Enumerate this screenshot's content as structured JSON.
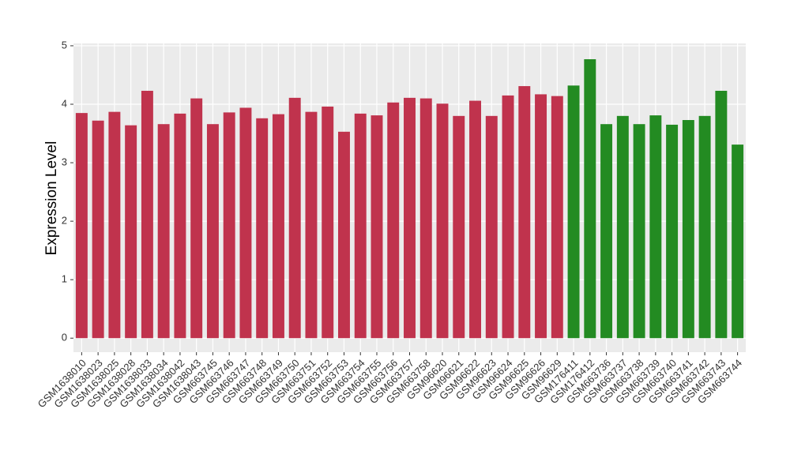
{
  "chart_data": {
    "type": "bar",
    "y_label": "Expression Level",
    "categories": [
      "GSM1638010",
      "GSM1638023",
      "GSM1638025",
      "GSM1638028",
      "GSM1638033",
      "GSM1638034",
      "GSM1638042",
      "GSM1638043",
      "GSM663745",
      "GSM663746",
      "GSM663747",
      "GSM663748",
      "GSM663749",
      "GSM663750",
      "GSM663751",
      "GSM663752",
      "GSM663753",
      "GSM663754",
      "GSM663755",
      "GSM663756",
      "GSM663757",
      "GSM663758",
      "GSM96620",
      "GSM96621",
      "GSM96622",
      "GSM96623",
      "GSM96624",
      "GSM96625",
      "GSM96626",
      "GSM96629",
      "GSM176411",
      "GSM176412",
      "GSM663736",
      "GSM663737",
      "GSM663738",
      "GSM663739",
      "GSM663740",
      "GSM663741",
      "GSM663742",
      "GSM663743",
      "GSM663744"
    ],
    "values": [
      3.85,
      3.72,
      3.87,
      3.64,
      4.23,
      3.66,
      3.84,
      4.1,
      3.66,
      3.86,
      3.94,
      3.76,
      3.83,
      4.11,
      3.87,
      3.96,
      3.53,
      3.84,
      3.81,
      4.03,
      4.11,
      4.1,
      4.01,
      3.8,
      4.06,
      3.8,
      4.15,
      4.31,
      4.17,
      4.14,
      4.32,
      4.77,
      3.66,
      3.8,
      3.66,
      3.81,
      3.65,
      3.73,
      3.8,
      4.23,
      3.31
    ],
    "colors": [
      "#c0334d",
      "#c0334d",
      "#c0334d",
      "#c0334d",
      "#c0334d",
      "#c0334d",
      "#c0334d",
      "#c0334d",
      "#c0334d",
      "#c0334d",
      "#c0334d",
      "#c0334d",
      "#c0334d",
      "#c0334d",
      "#c0334d",
      "#c0334d",
      "#c0334d",
      "#c0334d",
      "#c0334d",
      "#c0334d",
      "#c0334d",
      "#c0334d",
      "#c0334d",
      "#c0334d",
      "#c0334d",
      "#c0334d",
      "#c0334d",
      "#c0334d",
      "#c0334d",
      "#c0334d",
      "#238b22",
      "#238b22",
      "#238b22",
      "#238b22",
      "#238b22",
      "#238b22",
      "#238b22",
      "#238b22",
      "#238b22",
      "#238b22",
      "#238b22"
    ],
    "ylim": [
      -0.24,
      5.04
    ],
    "yticks": [
      0,
      1,
      2,
      3,
      4,
      5
    ],
    "grid": true
  }
}
